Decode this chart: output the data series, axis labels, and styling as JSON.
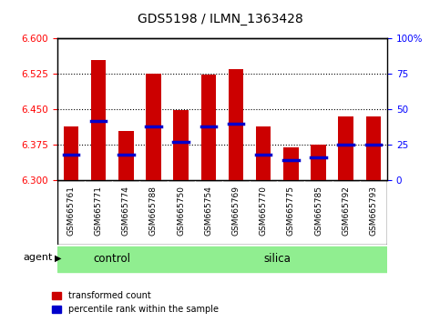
{
  "title": "GDS5198 / ILMN_1363428",
  "samples": [
    "GSM665761",
    "GSM665771",
    "GSM665774",
    "GSM665788",
    "GSM665750",
    "GSM665754",
    "GSM665769",
    "GSM665770",
    "GSM665775",
    "GSM665785",
    "GSM665792",
    "GSM665793"
  ],
  "groups": [
    "control",
    "control",
    "control",
    "control",
    "silica",
    "silica",
    "silica",
    "silica",
    "silica",
    "silica",
    "silica",
    "silica"
  ],
  "transformed_count": [
    6.415,
    6.555,
    6.405,
    6.525,
    6.448,
    6.524,
    6.535,
    6.415,
    6.37,
    6.375,
    6.435,
    6.435
  ],
  "percentile_rank": [
    18,
    42,
    18,
    38,
    27,
    38,
    40,
    18,
    14,
    16,
    25,
    25
  ],
  "ylim_left": [
    6.3,
    6.6
  ],
  "ylim_right": [
    0,
    100
  ],
  "yticks_left": [
    6.3,
    6.375,
    6.45,
    6.525,
    6.6
  ],
  "yticks_right": [
    0,
    25,
    50,
    75,
    100
  ],
  "grid_vals": [
    6.375,
    6.45,
    6.525
  ],
  "bar_color": "#cc0000",
  "marker_color": "#0000cc",
  "green_color": "#90EE90",
  "gray_color": "#d0d0d0",
  "bar_width": 0.55,
  "legend_red": "transformed count",
  "legend_blue": "percentile rank within the sample",
  "agent_label": "agent"
}
